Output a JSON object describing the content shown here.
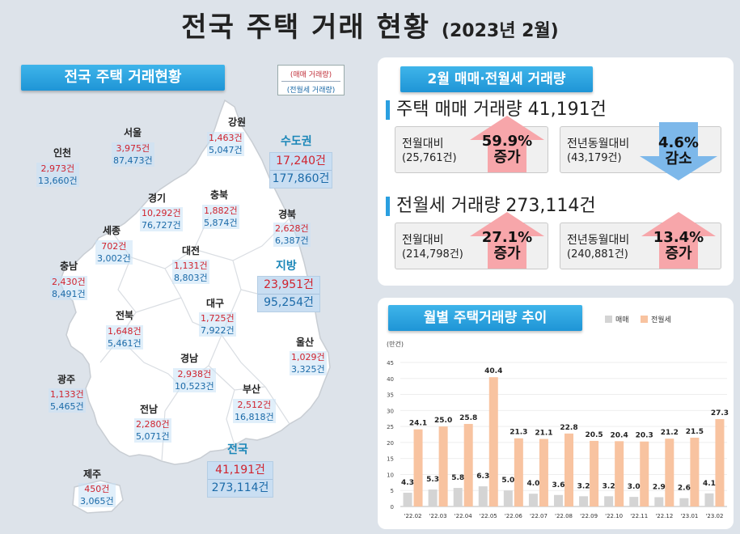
{
  "title": {
    "main": "전국 주택 거래 현황",
    "period": "(2023년 2월)"
  },
  "map_panel": {
    "ribbon": "전국 주택 거래현황",
    "legend": {
      "sale_label": "(매매 거래량)",
      "rent_label": "(전월세 거래량)"
    },
    "regions": [
      {
        "name": "강원",
        "sale": "1,463건",
        "rent": "5,047건"
      },
      {
        "name": "서울",
        "sale": "3,975건",
        "rent": "87,473건"
      },
      {
        "name": "인천",
        "sale": "2,973건",
        "rent": "13,660건"
      },
      {
        "name": "경기",
        "sale": "10,292건",
        "rent": "76,727건"
      },
      {
        "name": "충북",
        "sale": "1,882건",
        "rent": "5,874건"
      },
      {
        "name": "경북",
        "sale": "2,628건",
        "rent": "6,387건"
      },
      {
        "name": "세종",
        "sale": "702건",
        "rent": "3,002건"
      },
      {
        "name": "충남",
        "sale": "2,430건",
        "rent": "8,491건"
      },
      {
        "name": "대전",
        "sale": "1,131건",
        "rent": "8,803건"
      },
      {
        "name": "대구",
        "sale": "1,725건",
        "rent": "7,922건"
      },
      {
        "name": "전북",
        "sale": "1,648건",
        "rent": "5,461건"
      },
      {
        "name": "울산",
        "sale": "1,029건",
        "rent": "3,325건"
      },
      {
        "name": "광주",
        "sale": "1,133건",
        "rent": "5,465건"
      },
      {
        "name": "경남",
        "sale": "2,938건",
        "rent": "10,523건"
      },
      {
        "name": "부산",
        "sale": "2,512건",
        "rent": "16,818건"
      },
      {
        "name": "전남",
        "sale": "2,280건",
        "rent": "5,071건"
      },
      {
        "name": "제주",
        "sale": "450건",
        "rent": "3,065건"
      }
    ],
    "capital": {
      "name": "수도권",
      "sale": "17,240건",
      "rent": "177,860건"
    },
    "local": {
      "name": "지방",
      "sale": "23,951건",
      "rent": "95,254건"
    },
    "national": {
      "name": "전국",
      "sale": "41,191건",
      "rent": "273,114건"
    }
  },
  "volume_panel": {
    "ribbon": "2월 매매·전월세 거래량",
    "sale": {
      "title": "주택 매매 거래량 41,191건",
      "mom": {
        "label": "전월대비",
        "prev": "(25,761건)",
        "pct": "59.9%",
        "dir": "증가"
      },
      "yoy": {
        "label": "전년동월대비",
        "prev": "(43,179건)",
        "pct": "4.6%",
        "dir": "감소"
      }
    },
    "rent": {
      "title": "전월세 거래량 273,114건",
      "mom": {
        "label": "전월대비",
        "prev": "(214,798건)",
        "pct": "27.1%",
        "dir": "증가"
      },
      "yoy": {
        "label": "전년동월대비",
        "prev": "(240,881건)",
        "pct": "13.4%",
        "dir": "증가"
      }
    }
  },
  "chart_panel": {
    "ribbon": "월별 주택거래량 추이",
    "legend_sale": "매매",
    "legend_rent": "전월세"
  },
  "chart_data": {
    "type": "bar",
    "title": "월별 주택거래량 추이",
    "ylabel": "(만건)",
    "ylim": [
      0,
      45
    ],
    "yticks": [
      0,
      5,
      10,
      15,
      20,
      25,
      30,
      35,
      40,
      45
    ],
    "categories": [
      "'22.02",
      "'22.03",
      "'22.04",
      "'22.05",
      "'22.06",
      "'22.07",
      "'22.08",
      "'22.09",
      "'22.10",
      "'22.11",
      "'22.12",
      "'23.01",
      "'23.02"
    ],
    "series": [
      {
        "name": "매매",
        "color": "#d4d4d4",
        "values": [
          4.3,
          5.3,
          5.8,
          6.3,
          5.0,
          4.0,
          3.6,
          3.2,
          3.2,
          3.0,
          2.9,
          2.6,
          4.1
        ]
      },
      {
        "name": "전월세",
        "color": "#f8c3a0",
        "values": [
          24.1,
          25.0,
          25.8,
          40.4,
          21.3,
          21.1,
          22.8,
          20.5,
          20.4,
          20.3,
          21.2,
          21.5,
          27.3
        ]
      }
    ]
  },
  "colors": {
    "accent": "#2a9fe0",
    "sale_red": "#d0232e",
    "rent_blue": "#1b6aa8",
    "up_arrow": "#f7a6aa",
    "down_arrow": "#7db8ea"
  }
}
